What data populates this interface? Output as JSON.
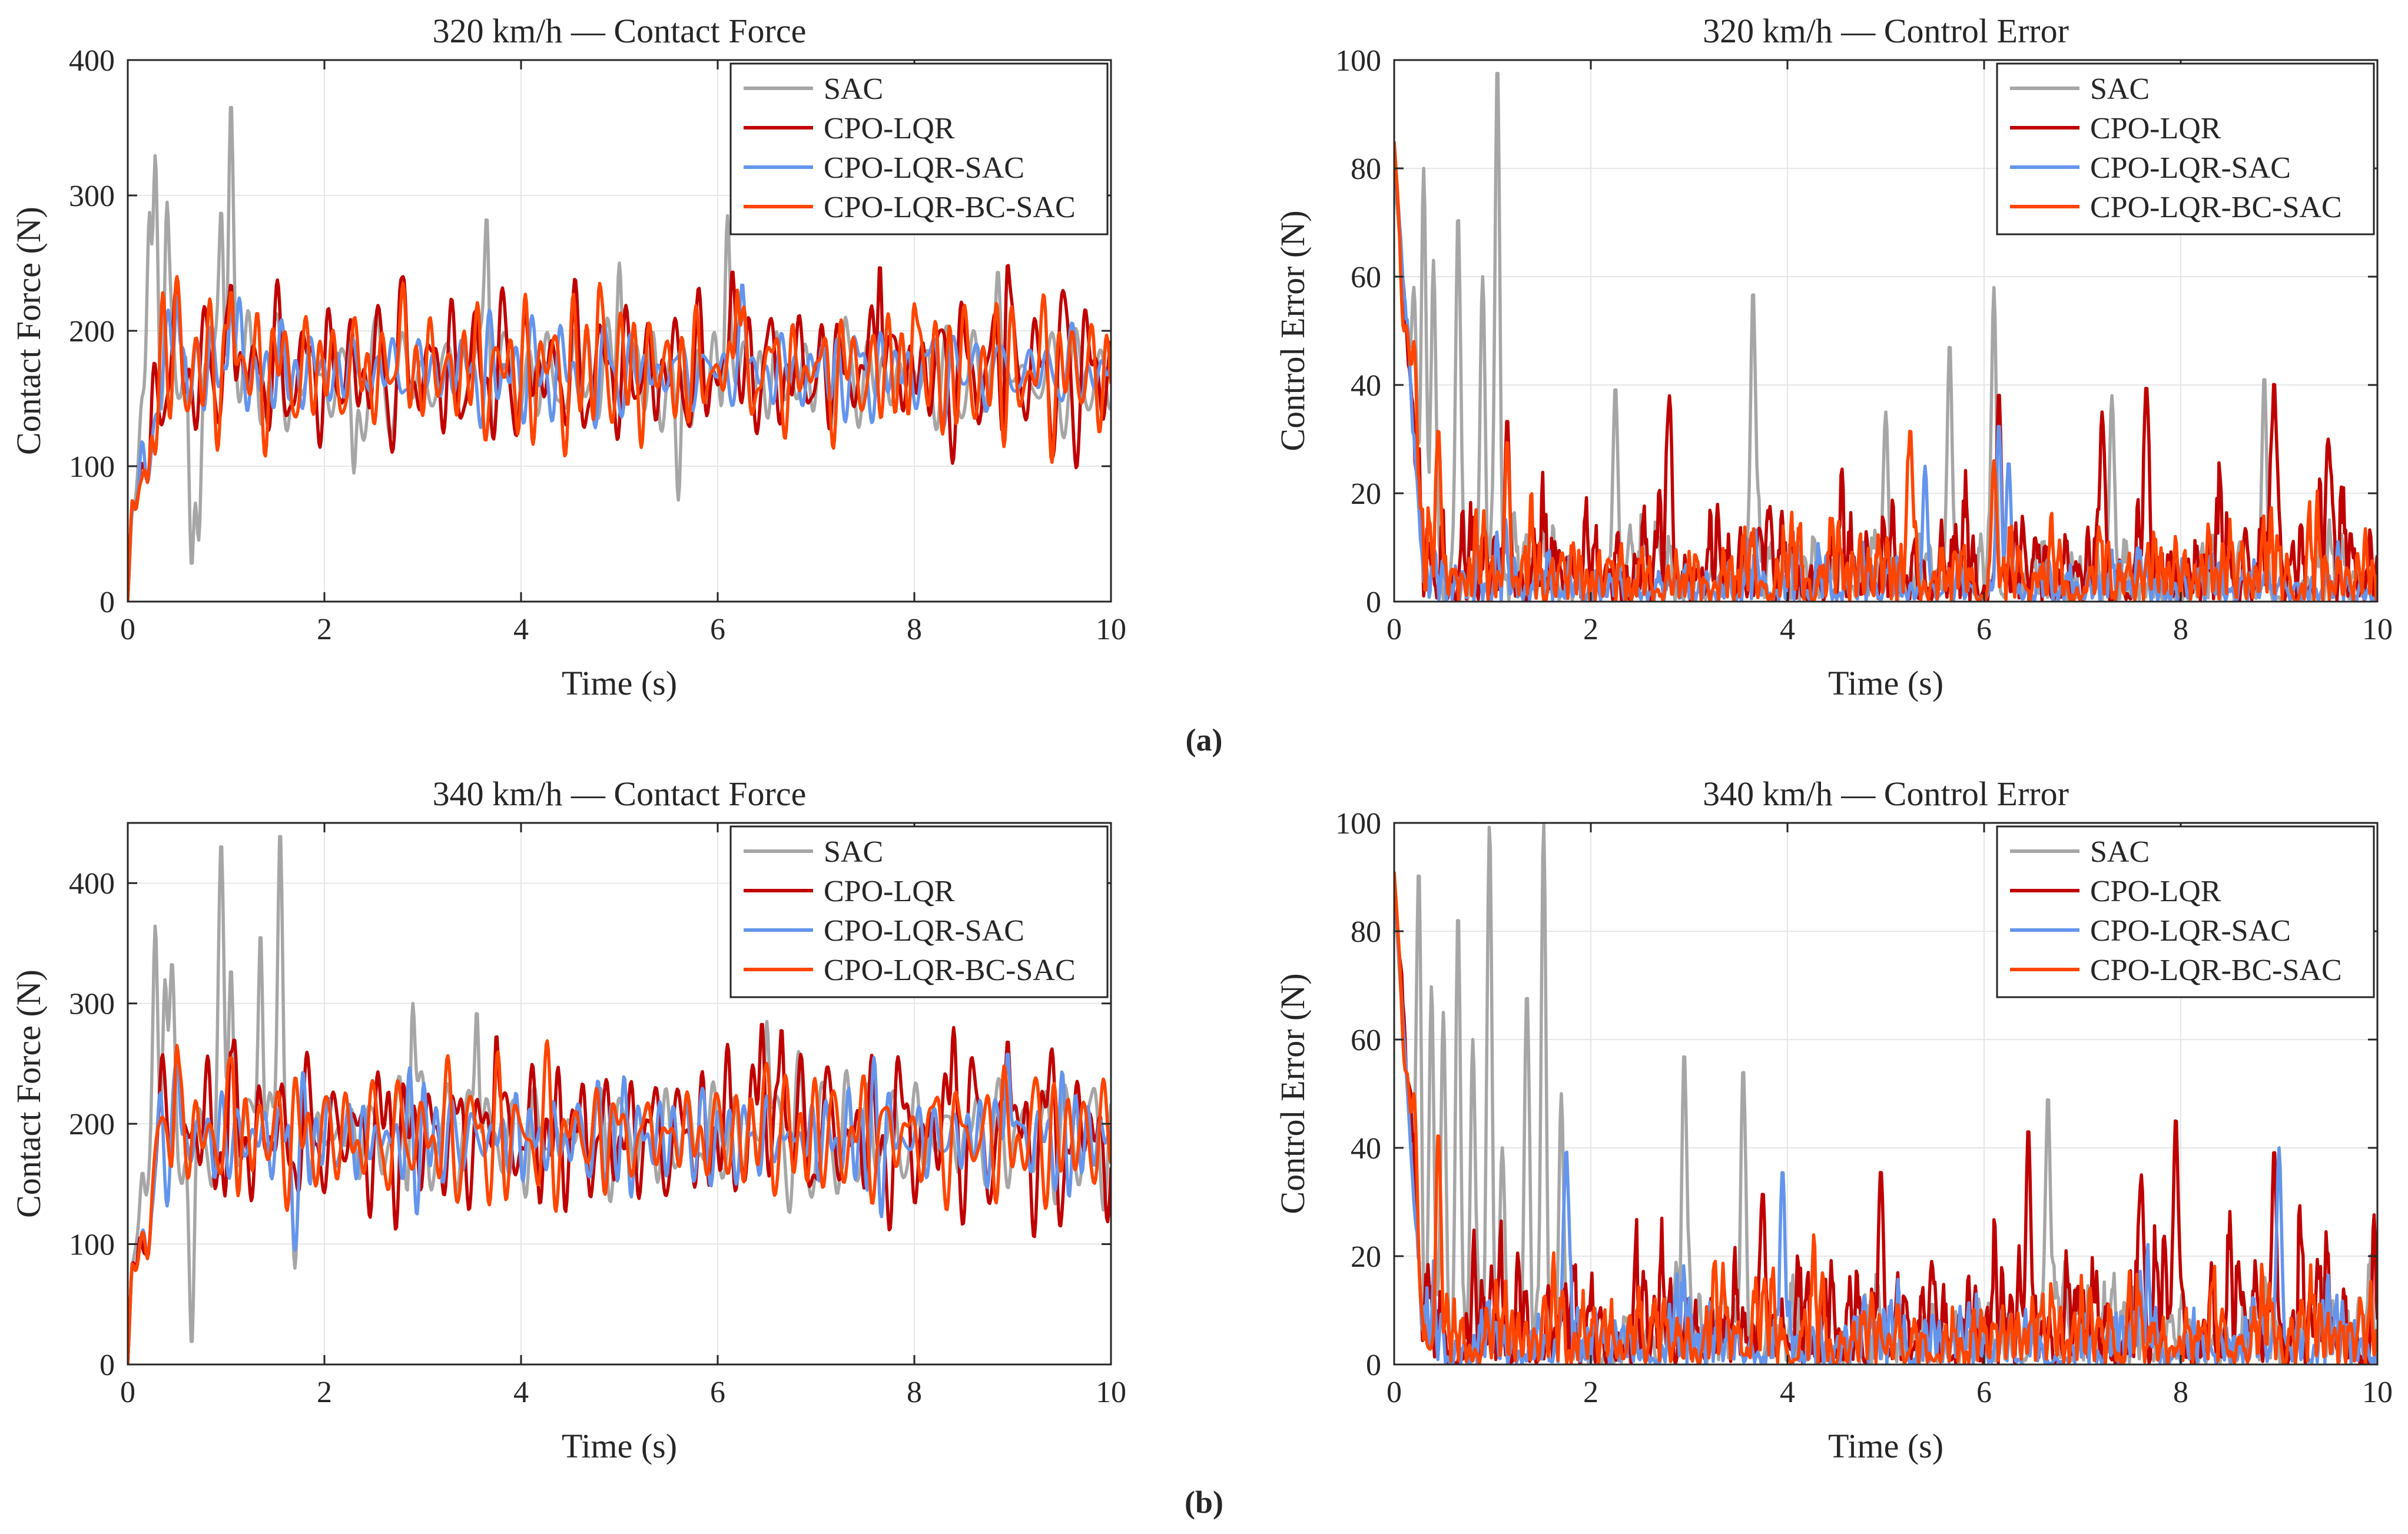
{
  "figure": {
    "panel_labels": [
      "(a)",
      "(b)"
    ]
  },
  "colors": {
    "SAC": "#a6a6a6",
    "CPO-LQR": "#c00000",
    "CPO-LQR-SAC": "#6495ed",
    "CPO-LQR-BC-SAC": "#ff4500",
    "grid": "#e6e6e6",
    "axis": "#262626"
  },
  "chart_data": [
    {
      "id": "a-left",
      "type": "line",
      "title": "320 km/h — Contact Force",
      "xlabel": "Time (s)",
      "ylabel": "Contact Force (N)",
      "xlim": [
        0,
        10
      ],
      "ylim": [
        0,
        400
      ],
      "xticks": [
        0,
        2,
        4,
        6,
        8,
        10
      ],
      "yticks": [
        0,
        100,
        200,
        300,
        400
      ],
      "grid": true,
      "legend_position": "top-right",
      "series": [
        {
          "name": "SAC",
          "kind": "force",
          "base": 165,
          "amp": 35,
          "seed": 11,
          "spikes": [
            [
              0.15,
              150
            ],
            [
              0.22,
              285
            ],
            [
              0.28,
              330
            ],
            [
              0.4,
              295
            ],
            [
              0.52,
              150
            ],
            [
              0.65,
              25
            ],
            [
              0.72,
              45
            ],
            [
              0.95,
              290
            ],
            [
              1.05,
              370
            ],
            [
              1.3,
              175
            ],
            [
              2.3,
              95
            ],
            [
              3.65,
              285
            ],
            [
              5.0,
              250
            ],
            [
              5.6,
              75
            ],
            [
              6.1,
              285
            ],
            [
              7.3,
              210
            ],
            [
              8.85,
              245
            ]
          ]
        },
        {
          "name": "CPO-LQR",
          "kind": "force",
          "base": 170,
          "amp": 45,
          "seed": 23,
          "spikes": [
            [
              0.08,
              70
            ],
            [
              0.2,
              90
            ],
            [
              0.5,
              235
            ],
            [
              1.05,
              235
            ],
            [
              2.8,
              240
            ],
            [
              6.15,
              245
            ],
            [
              8.95,
              250
            ],
            [
              7.65,
              250
            ]
          ]
        },
        {
          "name": "CPO-LQR-SAC",
          "kind": "force",
          "base": 170,
          "amp": 32,
          "seed": 37,
          "spikes": [
            [
              0.08,
              68
            ],
            [
              0.2,
              88
            ],
            [
              0.5,
              225
            ],
            [
              1.05,
              225
            ],
            [
              6.25,
              235
            ]
          ]
        },
        {
          "name": "CPO-LQR-BC-SAC",
          "kind": "force",
          "base": 170,
          "amp": 35,
          "seed": 41,
          "spikes": [
            [
              0.08,
              68
            ],
            [
              0.2,
              88
            ],
            [
              0.5,
              240
            ],
            [
              1.05,
              230
            ],
            [
              2.8,
              235
            ],
            [
              4.8,
              235
            ],
            [
              6.2,
              230
            ],
            [
              8.0,
              220
            ]
          ]
        }
      ]
    },
    {
      "id": "a-right",
      "type": "line",
      "title": "320 km/h — Control Error",
      "xlabel": "Time (s)",
      "ylabel": "Control Error (N)",
      "xlim": [
        0,
        10
      ],
      "ylim": [
        0,
        100
      ],
      "xticks": [
        0,
        2,
        4,
        6,
        8,
        10
      ],
      "yticks": [
        0,
        20,
        40,
        60,
        80,
        100
      ],
      "grid": true,
      "legend_position": "top-right",
      "series": [
        {
          "name": "SAC",
          "kind": "error",
          "start": 80,
          "scale": 13,
          "seed": 11,
          "spikes": [
            [
              0.2,
              58
            ],
            [
              0.3,
              80
            ],
            [
              0.4,
              63
            ],
            [
              0.65,
              72
            ],
            [
              0.9,
              60
            ],
            [
              1.05,
              100
            ],
            [
              2.25,
              40
            ],
            [
              3.65,
              58
            ],
            [
              5.0,
              35
            ],
            [
              5.65,
              48
            ],
            [
              6.1,
              58
            ],
            [
              7.3,
              38
            ],
            [
              8.85,
              42
            ]
          ]
        },
        {
          "name": "CPO-LQR",
          "kind": "error",
          "start": 84,
          "scale": 18,
          "seed": 23,
          "spikes": [
            [
              1.15,
              34
            ],
            [
              2.8,
              38
            ],
            [
              6.15,
              39
            ],
            [
              7.65,
              40
            ],
            [
              8.95,
              41
            ],
            [
              7.2,
              35
            ],
            [
              9.5,
              30
            ]
          ]
        },
        {
          "name": "CPO-LQR-SAC",
          "kind": "error",
          "start": 84,
          "scale": 10,
          "seed": 37,
          "spikes": [
            [
              6.15,
              33
            ],
            [
              6.25,
              26
            ],
            [
              5.4,
              25
            ]
          ]
        },
        {
          "name": "CPO-LQR-BC-SAC",
          "kind": "error",
          "start": 85,
          "scale": 12,
          "seed": 41,
          "spikes": [
            [
              0.1,
              50
            ],
            [
              0.2,
              48
            ],
            [
              0.45,
              32
            ],
            [
              1.15,
              30
            ],
            [
              5.25,
              32
            ],
            [
              6.1,
              26
            ]
          ]
        }
      ]
    },
    {
      "id": "b-left",
      "type": "line",
      "title": "340 km/h — Contact Force",
      "xlabel": "Time (s)",
      "ylabel": "Contact Force (N)",
      "xlim": [
        0,
        10
      ],
      "ylim": [
        0,
        450
      ],
      "xticks": [
        0,
        2,
        4,
        6,
        8,
        10
      ],
      "yticks": [
        0,
        100,
        200,
        300,
        400
      ],
      "grid": true,
      "legend_position": "top-right",
      "series": [
        {
          "name": "SAC",
          "kind": "force",
          "base": 190,
          "amp": 40,
          "seed": 13,
          "spikes": [
            [
              0.15,
              160
            ],
            [
              0.28,
              365
            ],
            [
              0.38,
              320
            ],
            [
              0.45,
              335
            ],
            [
              0.55,
              150
            ],
            [
              0.65,
              15
            ],
            [
              0.95,
              435
            ],
            [
              1.05,
              330
            ],
            [
              1.35,
              360
            ],
            [
              1.55,
              445
            ],
            [
              1.7,
              80
            ],
            [
              2.9,
              300
            ],
            [
              3.55,
              295
            ],
            [
              6.5,
              285
            ]
          ]
        },
        {
          "name": "CPO-LQR",
          "kind": "force",
          "base": 190,
          "amp": 50,
          "seed": 29,
          "spikes": [
            [
              0.08,
              80
            ],
            [
              0.2,
              90
            ],
            [
              0.5,
              265
            ],
            [
              1.05,
              260
            ],
            [
              3.75,
              275
            ],
            [
              6.45,
              285
            ],
            [
              6.65,
              280
            ],
            [
              8.4,
              280
            ],
            [
              8.95,
              270
            ]
          ]
        },
        {
          "name": "CPO-LQR-SAC",
          "kind": "force",
          "base": 188,
          "amp": 35,
          "seed": 31,
          "spikes": [
            [
              0.08,
              78
            ],
            [
              0.2,
              88
            ],
            [
              0.5,
              255
            ],
            [
              1.7,
              95
            ],
            [
              8.95,
              260
            ]
          ]
        },
        {
          "name": "CPO-LQR-BC-SAC",
          "kind": "force",
          "base": 190,
          "amp": 40,
          "seed": 43,
          "spikes": [
            [
              0.08,
              78
            ],
            [
              0.2,
              88
            ],
            [
              0.5,
              265
            ],
            [
              1.05,
              255
            ],
            [
              6.5,
              250
            ]
          ]
        }
      ]
    },
    {
      "id": "b-right",
      "type": "line",
      "title": "340 km/h — Control Error",
      "xlabel": "Time (s)",
      "ylabel": "Control Error (N)",
      "xlim": [
        0,
        10
      ],
      "ylim": [
        0,
        100
      ],
      "xticks": [
        0,
        2,
        4,
        6,
        8,
        10
      ],
      "yticks": [
        0,
        20,
        40,
        60,
        80,
        100
      ],
      "grid": true,
      "legend_position": "top-right",
      "series": [
        {
          "name": "SAC",
          "kind": "error",
          "start": 88,
          "scale": 14,
          "seed": 13,
          "spikes": [
            [
              0.25,
              92
            ],
            [
              0.38,
              70
            ],
            [
              0.5,
              65
            ],
            [
              0.65,
              84
            ],
            [
              0.8,
              60
            ],
            [
              0.97,
              100
            ],
            [
              1.1,
              40
            ],
            [
              1.35,
              69
            ],
            [
              1.52,
              100
            ],
            [
              1.7,
              50
            ],
            [
              2.95,
              58
            ],
            [
              3.55,
              55
            ],
            [
              6.65,
              50
            ]
          ]
        },
        {
          "name": "CPO-LQR",
          "kind": "error",
          "start": 90,
          "scale": 20,
          "seed": 29,
          "spikes": [
            [
              3.75,
              32
            ],
            [
              6.45,
              44
            ],
            [
              7.95,
              46
            ],
            [
              8.95,
              40
            ],
            [
              7.6,
              35
            ],
            [
              4.95,
              36
            ]
          ]
        },
        {
          "name": "CPO-LQR-SAC",
          "kind": "error",
          "start": 90,
          "scale": 12,
          "seed": 31,
          "spikes": [
            [
              1.75,
              40
            ],
            [
              3.95,
              36
            ],
            [
              9.0,
              40
            ]
          ]
        },
        {
          "name": "CPO-LQR-BC-SAC",
          "kind": "error",
          "start": 91,
          "scale": 14,
          "seed": 43,
          "spikes": [
            [
              0.12,
              54
            ],
            [
              0.2,
              50
            ],
            [
              0.45,
              43
            ]
          ]
        }
      ]
    }
  ]
}
